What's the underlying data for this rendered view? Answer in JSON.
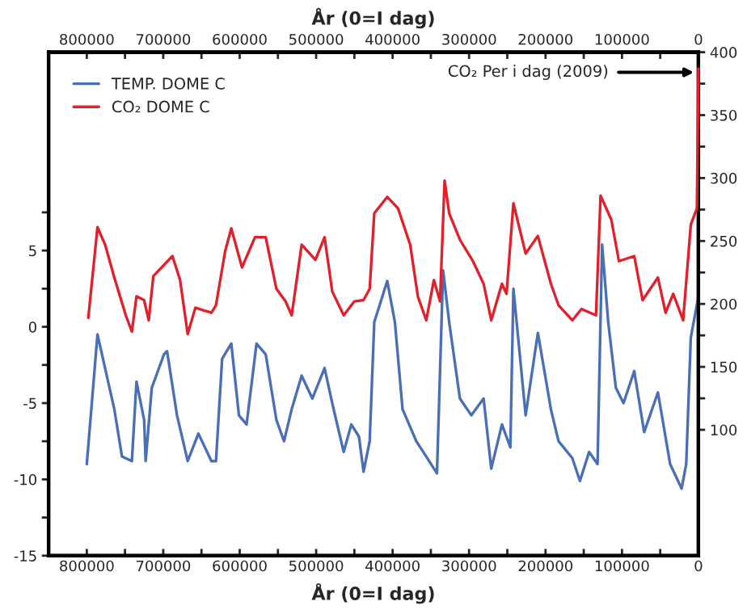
{
  "chart_data": {
    "type": "line",
    "xlabel": "År (0=I dag)",
    "x2label": "År (0=I dag)",
    "xlim": [
      850000,
      0
    ],
    "x2lim": [
      850000,
      0
    ],
    "xticks": [
      800000,
      {
        "value": 750000,
        "label": null
      },
      700000,
      {
        "value": 650000,
        "label": null
      },
      600000,
      {
        "value": 550000,
        "label": null
      },
      500000,
      {
        "value": 450000,
        "label": null
      },
      400000,
      {
        "value": 350000,
        "label": null
      },
      300000,
      {
        "value": 250000,
        "label": null
      },
      200000,
      {
        "value": 150000,
        "label": null
      },
      100000,
      {
        "value": 50000,
        "label": null
      },
      0
    ],
    "x2ticks": [
      800000,
      {
        "value": 750000,
        "label": null
      },
      700000,
      {
        "value": 650000,
        "label": null
      },
      600000,
      {
        "value": 550000,
        "label": null
      },
      500000,
      {
        "value": 450000,
        "label": null
      },
      400000,
      {
        "value": 350000,
        "label": null
      },
      300000,
      {
        "value": 250000,
        "label": null
      },
      200000,
      {
        "value": 150000,
        "label": null
      },
      100000,
      {
        "value": 50000,
        "label": null
      },
      0
    ],
    "ylim": [
      -15,
      18
    ],
    "yticks": [
      -15,
      {
        "value": -12.5,
        "label": null
      },
      -10,
      {
        "value": -7.5,
        "label": null
      },
      -5,
      {
        "value": -2.5,
        "label": null
      },
      0,
      {
        "value": 2.5,
        "label": null
      },
      5,
      {
        "value": 7.5,
        "label": null
      }
    ],
    "y2lim": [
      0,
      400
    ],
    "y2ticks": [
      100,
      {
        "value": 125,
        "label": null
      },
      150,
      {
        "value": 175,
        "label": null
      },
      200,
      {
        "value": 225,
        "label": null
      },
      250,
      {
        "value": 275,
        "label": null
      },
      300,
      {
        "value": 325,
        "label": null
      },
      350,
      {
        "value": 375,
        "label": null
      },
      400
    ],
    "grid": false,
    "legend": "top left",
    "marker": "none",
    "line_style": "solid",
    "annotations": [
      "CO₂ Per i dag (2009)"
    ],
    "series": [
      {
        "name": "TEMP. DOME C",
        "color": "#4a6fb5",
        "x": [
          800000,
          786000,
          764000,
          754000,
          741000,
          735000,
          725000,
          723000,
          715000,
          699000,
          695000,
          682000,
          668000,
          654000,
          637000,
          631000,
          623000,
          611000,
          601000,
          591000,
          578000,
          566000,
          552000,
          542000,
          532000,
          519000,
          505000,
          489000,
          479000,
          464000,
          454000,
          444000,
          438000,
          430000,
          424000,
          407000,
          397000,
          387000,
          369000,
          356000,
          342000,
          334000,
          326000,
          312000,
          297000,
          281000,
          271000,
          257000,
          246000,
          242000,
          226000,
          210000,
          193000,
          183000,
          165000,
          155000,
          143000,
          132000,
          126000,
          118000,
          108000,
          98000,
          84000,
          71000,
          53000,
          37000,
          22000,
          16000,
          10000,
          0
        ],
        "values": [
          -9.0,
          -0.5,
          -5.4,
          -8.5,
          -8.8,
          -3.6,
          -6.1,
          -8.8,
          -4.0,
          -1.8,
          -1.6,
          -5.8,
          -8.8,
          -7.0,
          -8.8,
          -8.8,
          -2.1,
          -1.1,
          -5.8,
          -6.4,
          -1.1,
          -1.8,
          -6.1,
          -7.5,
          -5.4,
          -3.2,
          -4.7,
          -2.7,
          -5.0,
          -8.2,
          -6.4,
          -7.2,
          -9.5,
          -7.5,
          0.3,
          3.0,
          0.3,
          -5.4,
          -7.5,
          -8.5,
          -9.6,
          3.7,
          0.3,
          -4.7,
          -5.8,
          -4.7,
          -9.3,
          -6.4,
          -7.9,
          2.5,
          -5.8,
          -0.4,
          -5.4,
          -7.5,
          -8.6,
          -10.1,
          -8.2,
          -9.0,
          5.4,
          0.3,
          -4.0,
          -5.0,
          -2.9,
          -6.9,
          -4.3,
          -9.0,
          -10.6,
          -9.0,
          -0.7,
          2.0
        ]
      },
      {
        "name": "CO₂ DOME C",
        "color": "#e0202a",
        "axis": "y2",
        "x": [
          798000,
          786000,
          776000,
          764000,
          749000,
          741000,
          735000,
          725000,
          719000,
          713000,
          699000,
          688000,
          678000,
          668000,
          658000,
          637000,
          631000,
          619000,
          611000,
          597000,
          580000,
          566000,
          552000,
          540000,
          532000,
          519000,
          501000,
          489000,
          479000,
          464000,
          450000,
          438000,
          430000,
          424000,
          407000,
          393000,
          377000,
          367000,
          356000,
          346000,
          338000,
          332000,
          326000,
          312000,
          295000,
          281000,
          271000,
          257000,
          251000,
          242000,
          226000,
          210000,
          193000,
          183000,
          165000,
          153000,
          134000,
          128000,
          114000,
          104000,
          84000,
          73000,
          53000,
          43000,
          33000,
          20000,
          10000,
          2000,
          0
        ],
        "values": [
          189,
          261,
          247,
          221,
          191,
          178,
          206,
          203,
          187,
          222,
          231,
          238,
          219,
          176,
          197,
          193,
          199,
          242,
          260,
          229,
          253,
          253,
          212,
          202,
          191,
          247,
          235,
          253,
          210,
          191,
          202,
          203,
          212,
          272,
          285,
          276,
          247,
          206,
          187,
          219,
          202,
          298,
          272,
          251,
          234,
          216,
          187,
          216,
          208,
          280,
          240,
          254,
          216,
          199,
          187,
          196,
          191,
          286,
          267,
          234,
          238,
          203,
          221,
          193,
          208,
          187,
          263,
          276,
          387
        ]
      }
    ]
  }
}
